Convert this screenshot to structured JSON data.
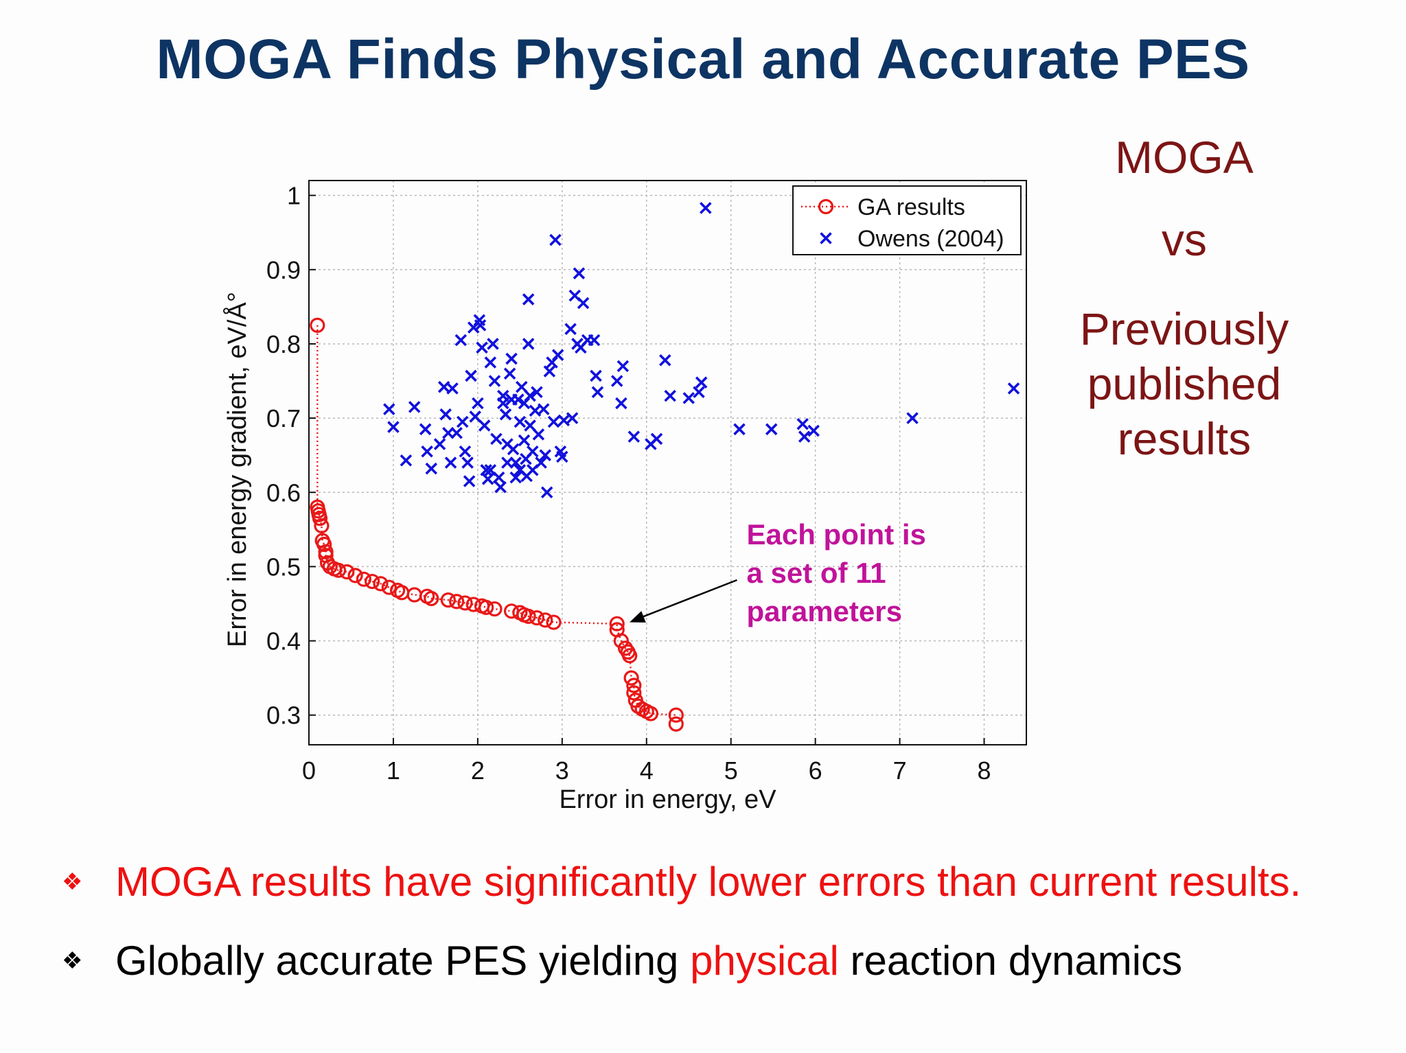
{
  "slide": {
    "title": "MOGA Finds Physical and Accurate PES",
    "side_text": [
      "MOGA",
      "vs",
      "Previously",
      "published",
      "results"
    ],
    "bullets": [
      {
        "parts": [
          {
            "text": "MOGA results have significantly lower errors than current results.",
            "color": "#ee1111"
          }
        ]
      },
      {
        "parts": [
          {
            "text": "Globally accurate PES yielding ",
            "color": "#000000"
          },
          {
            "text": "physical",
            "color": "#ee1111"
          },
          {
            "text": " reaction dynamics",
            "color": "#000000"
          }
        ]
      }
    ]
  },
  "chart_data": {
    "type": "scatter",
    "xlabel": "Error in energy, eV",
    "ylabel": "Error in energy gradient, eV/Å°",
    "xlim": [
      0,
      8.5
    ],
    "ylim": [
      0.26,
      1.02
    ],
    "xticks": [
      0,
      1,
      2,
      3,
      4,
      5,
      6,
      7,
      8
    ],
    "yticks": [
      0.3,
      0.4,
      0.5,
      0.6,
      0.7,
      0.8,
      0.9,
      1
    ],
    "grid": true,
    "legend": "top-right",
    "annotation": {
      "lines": [
        "Each point is",
        "a set of 11",
        "parameters"
      ],
      "color": "#c0139a",
      "arrow_to": [
        3.75,
        0.425
      ]
    },
    "series": [
      {
        "name": "GA results",
        "marker": "circle",
        "color": "#e81818",
        "line": "dotted",
        "points": [
          [
            0.1,
            0.825
          ],
          [
            0.1,
            0.58
          ],
          [
            0.11,
            0.575
          ],
          [
            0.12,
            0.57
          ],
          [
            0.13,
            0.565
          ],
          [
            0.15,
            0.555
          ],
          [
            0.16,
            0.535
          ],
          [
            0.18,
            0.53
          ],
          [
            0.2,
            0.52
          ],
          [
            0.2,
            0.515
          ],
          [
            0.22,
            0.505
          ],
          [
            0.25,
            0.5
          ],
          [
            0.3,
            0.497
          ],
          [
            0.35,
            0.495
          ],
          [
            0.45,
            0.493
          ],
          [
            0.55,
            0.488
          ],
          [
            0.65,
            0.483
          ],
          [
            0.75,
            0.48
          ],
          [
            0.85,
            0.477
          ],
          [
            0.95,
            0.472
          ],
          [
            1.05,
            0.468
          ],
          [
            1.1,
            0.465
          ],
          [
            1.25,
            0.462
          ],
          [
            1.4,
            0.46
          ],
          [
            1.45,
            0.457
          ],
          [
            1.65,
            0.455
          ],
          [
            1.75,
            0.453
          ],
          [
            1.85,
            0.451
          ],
          [
            1.95,
            0.449
          ],
          [
            2.05,
            0.447
          ],
          [
            2.1,
            0.445
          ],
          [
            2.2,
            0.443
          ],
          [
            2.4,
            0.44
          ],
          [
            2.5,
            0.438
          ],
          [
            2.55,
            0.435
          ],
          [
            2.6,
            0.433
          ],
          [
            2.7,
            0.431
          ],
          [
            2.8,
            0.428
          ],
          [
            2.9,
            0.425
          ],
          [
            3.65,
            0.423
          ],
          [
            3.65,
            0.415
          ],
          [
            3.7,
            0.4
          ],
          [
            3.75,
            0.39
          ],
          [
            3.78,
            0.385
          ],
          [
            3.8,
            0.38
          ],
          [
            3.82,
            0.35
          ],
          [
            3.85,
            0.34
          ],
          [
            3.85,
            0.33
          ],
          [
            3.87,
            0.32
          ],
          [
            3.9,
            0.312
          ],
          [
            3.95,
            0.308
          ],
          [
            4.0,
            0.305
          ],
          [
            4.05,
            0.302
          ],
          [
            4.35,
            0.3
          ],
          [
            4.35,
            0.288
          ]
        ]
      },
      {
        "name": "Owens (2004)",
        "marker": "x",
        "color": "#1111dd",
        "points": [
          [
            0.95,
            0.712
          ],
          [
            1.0,
            0.688
          ],
          [
            1.15,
            0.643
          ],
          [
            1.25,
            0.715
          ],
          [
            1.38,
            0.685
          ],
          [
            1.4,
            0.655
          ],
          [
            1.45,
            0.632
          ],
          [
            1.55,
            0.665
          ],
          [
            1.6,
            0.742
          ],
          [
            1.62,
            0.705
          ],
          [
            1.65,
            0.68
          ],
          [
            1.68,
            0.64
          ],
          [
            1.7,
            0.74
          ],
          [
            1.75,
            0.68
          ],
          [
            1.8,
            0.805
          ],
          [
            1.82,
            0.695
          ],
          [
            1.85,
            0.655
          ],
          [
            1.88,
            0.64
          ],
          [
            1.9,
            0.615
          ],
          [
            1.92,
            0.757
          ],
          [
            1.95,
            0.822
          ],
          [
            1.97,
            0.702
          ],
          [
            2.0,
            0.72
          ],
          [
            2.02,
            0.832
          ],
          [
            2.03,
            0.825
          ],
          [
            2.05,
            0.795
          ],
          [
            2.08,
            0.69
          ],
          [
            2.1,
            0.63
          ],
          [
            2.12,
            0.618
          ],
          [
            2.15,
            0.775
          ],
          [
            2.15,
            0.63
          ],
          [
            2.18,
            0.8
          ],
          [
            2.2,
            0.75
          ],
          [
            2.22,
            0.672
          ],
          [
            2.25,
            0.62
          ],
          [
            2.27,
            0.607
          ],
          [
            2.3,
            0.73
          ],
          [
            2.3,
            0.72
          ],
          [
            2.33,
            0.705
          ],
          [
            2.35,
            0.665
          ],
          [
            2.35,
            0.64
          ],
          [
            2.38,
            0.76
          ],
          [
            2.4,
            0.78
          ],
          [
            2.4,
            0.725
          ],
          [
            2.42,
            0.658
          ],
          [
            2.45,
            0.64
          ],
          [
            2.45,
            0.62
          ],
          [
            2.48,
            0.725
          ],
          [
            2.5,
            0.695
          ],
          [
            2.5,
            0.63
          ],
          [
            2.52,
            0.742
          ],
          [
            2.55,
            0.72
          ],
          [
            2.55,
            0.67
          ],
          [
            2.57,
            0.645
          ],
          [
            2.58,
            0.622
          ],
          [
            2.6,
            0.86
          ],
          [
            2.6,
            0.8
          ],
          [
            2.62,
            0.73
          ],
          [
            2.62,
            0.69
          ],
          [
            2.65,
            0.655
          ],
          [
            2.65,
            0.63
          ],
          [
            2.68,
            0.71
          ],
          [
            2.7,
            0.735
          ],
          [
            2.72,
            0.678
          ],
          [
            2.75,
            0.64
          ],
          [
            2.78,
            0.712
          ],
          [
            2.8,
            0.65
          ],
          [
            2.82,
            0.6
          ],
          [
            2.85,
            0.763
          ],
          [
            2.88,
            0.775
          ],
          [
            2.9,
            0.695
          ],
          [
            2.92,
            0.94
          ],
          [
            2.95,
            0.785
          ],
          [
            2.98,
            0.655
          ],
          [
            3.0,
            0.648
          ],
          [
            3.02,
            0.697
          ],
          [
            3.1,
            0.82
          ],
          [
            3.12,
            0.7
          ],
          [
            3.15,
            0.865
          ],
          [
            3.18,
            0.8
          ],
          [
            3.2,
            0.895
          ],
          [
            3.22,
            0.795
          ],
          [
            3.25,
            0.855
          ],
          [
            3.3,
            0.805
          ],
          [
            3.38,
            0.805
          ],
          [
            3.4,
            0.757
          ],
          [
            3.42,
            0.735
          ],
          [
            3.65,
            0.75
          ],
          [
            3.7,
            0.72
          ],
          [
            3.72,
            0.77
          ],
          [
            3.85,
            0.675
          ],
          [
            4.05,
            0.665
          ],
          [
            4.12,
            0.672
          ],
          [
            4.22,
            0.778
          ],
          [
            4.28,
            0.73
          ],
          [
            4.5,
            0.727
          ],
          [
            4.62,
            0.735
          ],
          [
            4.65,
            0.748
          ],
          [
            4.7,
            0.983
          ],
          [
            5.1,
            0.685
          ],
          [
            5.48,
            0.685
          ],
          [
            5.85,
            0.692
          ],
          [
            5.87,
            0.675
          ],
          [
            5.98,
            0.683
          ],
          [
            7.15,
            0.7
          ],
          [
            8.35,
            0.74
          ]
        ]
      }
    ]
  }
}
